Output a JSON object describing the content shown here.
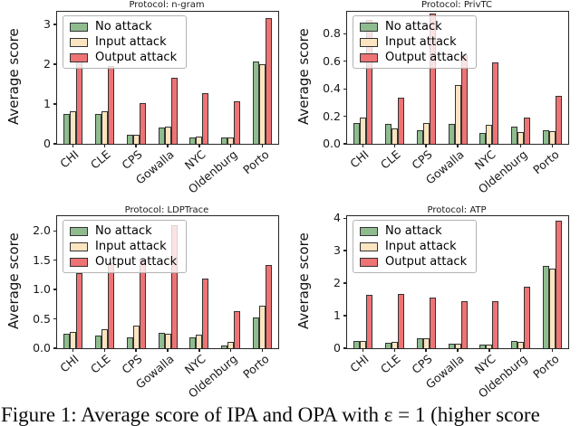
{
  "figure_caption": "Figure 1: Average score of IPA and OPA with ε = 1 (higher score",
  "legend": {
    "labels": [
      "No attack",
      "Input attack",
      "Output attack"
    ]
  },
  "style": {
    "series_fill": [
      "#8fbc8f",
      "#fbe5c1",
      "#ee7374"
    ],
    "bar_edge": "#333333",
    "axis_color": "#262626",
    "legend_border": "#b3b3b3",
    "background": "#ffffff"
  },
  "chart_data": [
    {
      "type": "bar",
      "title": "Protocol: n-gram",
      "xlabel": "",
      "ylabel": "Average score",
      "legend_position": "upper left",
      "grid": false,
      "categories": [
        "CHI",
        "CLE",
        "CPS",
        "Gowalla",
        "NYC",
        "Oldenburg",
        "Porto"
      ],
      "series": [
        {
          "name": "No attack",
          "values": [
            0.75,
            0.76,
            0.23,
            0.41,
            0.16,
            0.16,
            2.08
          ]
        },
        {
          "name": "Input attack",
          "values": [
            0.82,
            0.83,
            0.22,
            0.44,
            0.18,
            0.15,
            2.0
          ]
        },
        {
          "name": "Output attack",
          "values": [
            2.07,
            1.95,
            1.02,
            1.66,
            1.28,
            1.07,
            3.15
          ]
        }
      ],
      "ytick_labels": [
        "0",
        "1",
        "2",
        "3"
      ],
      "ytick_values": [
        0,
        1,
        2,
        3
      ],
      "ylim": [
        0,
        3.32
      ]
    },
    {
      "type": "bar",
      "title": "Protocol: PrivTC",
      "xlabel": "",
      "ylabel": "Average score",
      "legend_position": "upper left",
      "grid": false,
      "categories": [
        "CHI",
        "CLE",
        "CPS",
        "Gowalla",
        "NYC",
        "Oldenburg",
        "Porto"
      ],
      "series": [
        {
          "name": "No attack",
          "values": [
            0.15,
            0.145,
            0.1,
            0.145,
            0.08,
            0.125,
            0.1
          ]
        },
        {
          "name": "Input attack",
          "values": [
            0.19,
            0.115,
            0.15,
            0.43,
            0.135,
            0.085,
            0.095
          ]
        },
        {
          "name": "Output attack",
          "values": [
            0.9,
            0.335,
            0.95,
            0.65,
            0.59,
            0.19,
            0.35
          ]
        }
      ],
      "ytick_labels": [
        "0.0",
        "0.2",
        "0.4",
        "0.6",
        "0.8"
      ],
      "ytick_values": [
        0,
        0.2,
        0.4,
        0.6,
        0.8
      ],
      "ylim": [
        0,
        0.96
      ]
    },
    {
      "type": "bar",
      "title": "Protocol: LDPTrace",
      "xlabel": "",
      "ylabel": "Average score",
      "legend_position": "upper left",
      "grid": false,
      "categories": [
        "CHI",
        "CLE",
        "CPS",
        "Gowalla",
        "NYC",
        "Oldenburg",
        "Porto"
      ],
      "series": [
        {
          "name": "No attack",
          "values": [
            0.25,
            0.21,
            0.18,
            0.26,
            0.19,
            0.04,
            0.53
          ]
        },
        {
          "name": "Input attack",
          "values": [
            0.27,
            0.33,
            0.38,
            0.25,
            0.23,
            0.11,
            0.72
          ]
        },
        {
          "name": "Output attack",
          "values": [
            1.28,
            1.45,
            1.52,
            2.1,
            1.18,
            0.63,
            1.42
          ]
        }
      ],
      "ytick_labels": [
        "0.0",
        "0.5",
        "1.0",
        "1.5",
        "2.0"
      ],
      "ytick_values": [
        0,
        0.5,
        1.0,
        1.5,
        2.0
      ],
      "ylim": [
        0,
        2.25
      ]
    },
    {
      "type": "bar",
      "title": "Protocol: ATP",
      "xlabel": "",
      "ylabel": "Average score",
      "legend_position": "upper left",
      "grid": false,
      "categories": [
        "CHI",
        "CLE",
        "CPS",
        "Gowalla",
        "NYC",
        "Oldenburg",
        "Porto"
      ],
      "series": [
        {
          "name": "No attack",
          "values": [
            0.22,
            0.16,
            0.31,
            0.13,
            0.1,
            0.23,
            2.53
          ]
        },
        {
          "name": "Input attack",
          "values": [
            0.22,
            0.19,
            0.31,
            0.14,
            0.12,
            0.2,
            2.44
          ]
        },
        {
          "name": "Output attack",
          "values": [
            1.65,
            1.68,
            1.55,
            1.46,
            1.44,
            1.88,
            3.92
          ]
        }
      ],
      "ytick_labels": [
        "0",
        "1",
        "2",
        "3",
        "4"
      ],
      "ytick_values": [
        0,
        1,
        2,
        3,
        4
      ],
      "ylim": [
        0,
        4.06
      ]
    }
  ]
}
